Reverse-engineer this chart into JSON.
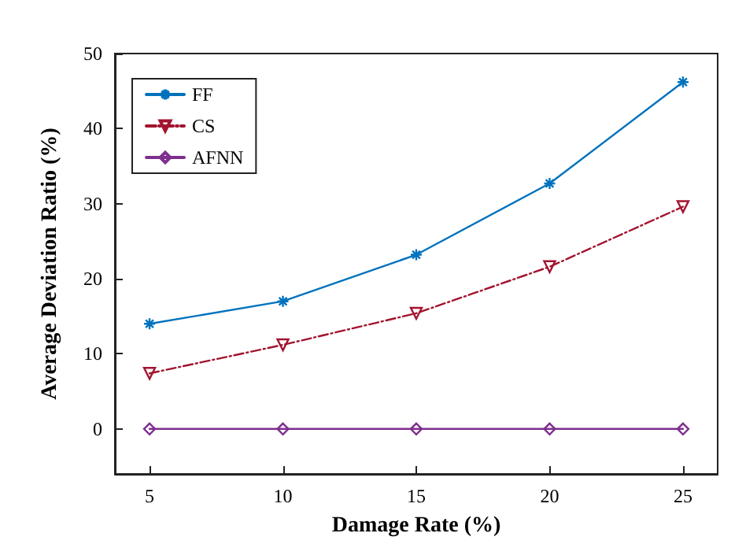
{
  "chart_data": {
    "type": "line",
    "xlabel": "Damage Rate (%)",
    "ylabel": "Average Deviation Ratio (%)",
    "x": [
      5,
      10,
      15,
      20,
      25
    ],
    "series": [
      {
        "name": "FF",
        "color": "#0072bd",
        "values": [
          14,
          17,
          23.2,
          32.7,
          46.2
        ],
        "marker": "cross",
        "line_style": "solid"
      },
      {
        "name": "CS",
        "color": "#a2142f",
        "values": [
          7.4,
          11.2,
          15.4,
          21.6,
          29.6
        ],
        "marker": "triangle",
        "line_style": "dashed"
      },
      {
        "name": "AFNN",
        "color": "#7e2f8e",
        "values": [
          0,
          0,
          0,
          0,
          0
        ],
        "marker": "diamond",
        "line_style": "solid"
      }
    ],
    "xlim": [
      3.7,
      26.3
    ],
    "xticks": [
      5,
      10,
      15,
      20,
      25
    ],
    "ylim": [
      -6,
      50
    ],
    "yticks": [
      0,
      10,
      20,
      30,
      40,
      50
    ],
    "grid": false,
    "legend": "top left"
  }
}
